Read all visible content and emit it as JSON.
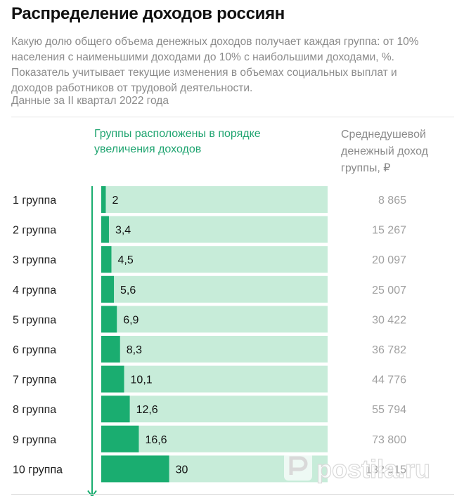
{
  "header": {
    "title": "Распределение доходов россиян",
    "subtitle": "Какую долю общего объема денежных доходов получает каждая группа: от 10% населения с наименьшими доходами до 10% с наибольшими доходами, %. Показатель учитывает текущие изменения в объемах социальных выплат и доходов работников от трудовой деятельности.",
    "period": "Данные за II квартал 2022 года"
  },
  "legend": {
    "groups_note": "Группы расположены в порядке увеличения доходов",
    "income_header": "Среднедушевой денежный доход группы, ₽"
  },
  "watermark": {
    "text": "postila.ru"
  },
  "colors": {
    "bar": "#1aad70",
    "track": "#c7ecd9",
    "accent_text": "#1fa470",
    "arrow": "#1aad70"
  },
  "chart_data": {
    "type": "bar",
    "orientation": "horizontal",
    "categories": [
      "1 группа",
      "2 группа",
      "3 группа",
      "4 группа",
      "5 группа",
      "6 группа",
      "7 группа",
      "8 группа",
      "9 группа",
      "10 группа"
    ],
    "values": [
      2,
      3.4,
      4.5,
      5.6,
      6.9,
      8.3,
      10.1,
      12.6,
      16.6,
      30
    ],
    "value_labels": [
      "2",
      "3,4",
      "4,5",
      "5,6",
      "6,9",
      "8,3",
      "10,1",
      "12,6",
      "16,6",
      "30"
    ],
    "income_labels": [
      "8 865",
      "15 267",
      "20 097",
      "25 007",
      "30 422",
      "36 782",
      "44 776",
      "55 794",
      "73 800",
      "132 915"
    ],
    "xlim": [
      0,
      100
    ],
    "unit": "%"
  }
}
